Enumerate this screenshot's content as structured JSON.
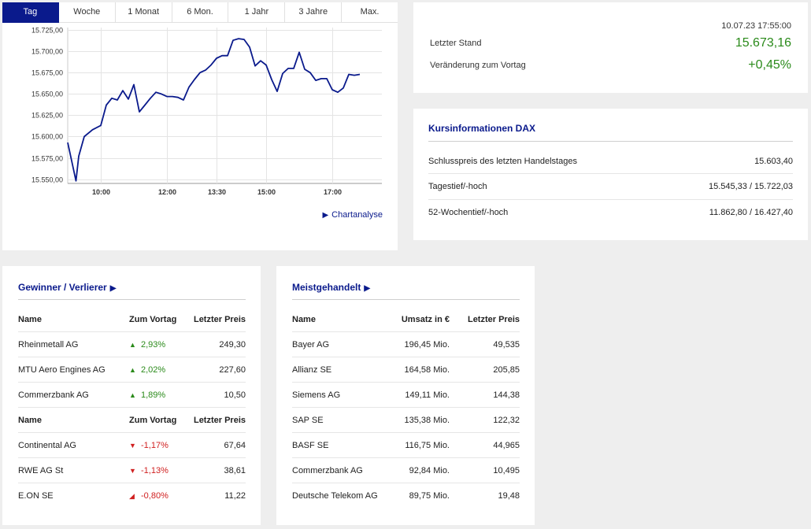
{
  "colors": {
    "accent": "#0a1a8c",
    "positive": "#2a8a1a",
    "negative": "#d02020"
  },
  "tabs": [
    {
      "label": "Tag",
      "active": true
    },
    {
      "label": "Woche"
    },
    {
      "label": "1 Monat"
    },
    {
      "label": "6 Mon."
    },
    {
      "label": "1 Jahr"
    },
    {
      "label": "3 Jahre"
    },
    {
      "label": "Max."
    }
  ],
  "chart_data": {
    "type": "line",
    "title": "",
    "xlabel": "",
    "ylabel": "",
    "y_ticks": [
      "15.725,00",
      "15.700,00",
      "15.675,00",
      "15.650,00",
      "15.625,00",
      "15.600,00",
      "15.575,00",
      "15.550,00"
    ],
    "y_tick_values": [
      15725,
      15700,
      15675,
      15650,
      15625,
      15600,
      15575,
      15550
    ],
    "x_ticks": [
      "10:00",
      "12:00",
      "13:30",
      "15:00",
      "17:00"
    ],
    "x_tick_values": [
      "10:00",
      "12:00",
      "13:30",
      "15:00",
      "17:00"
    ],
    "ylim": [
      15545,
      15728
    ],
    "xlim": [
      "09:00",
      "18:30"
    ],
    "grid": true,
    "series": [
      {
        "x": [
          "09:00",
          "09:15",
          "09:20",
          "09:30",
          "09:45",
          "10:00",
          "10:10",
          "10:20",
          "10:30",
          "10:40",
          "10:50",
          "11:00",
          "11:10",
          "11:20",
          "11:30",
          "11:40",
          "11:50",
          "12:00",
          "12:10",
          "12:20",
          "12:30",
          "12:40",
          "12:50",
          "13:00",
          "13:10",
          "13:20",
          "13:30",
          "13:40",
          "13:50",
          "14:00",
          "14:10",
          "14:20",
          "14:30",
          "14:40",
          "14:50",
          "15:00",
          "15:10",
          "15:20",
          "15:30",
          "15:40",
          "15:50",
          "16:00",
          "16:10",
          "16:20",
          "16:30",
          "16:40",
          "16:50",
          "17:00",
          "17:10",
          "17:20",
          "17:30",
          "17:40",
          "17:50"
        ],
        "y": [
          15593,
          15548,
          15577,
          15600,
          15608,
          15613,
          15637,
          15645,
          15643,
          15654,
          15644,
          15661,
          15629,
          15637,
          15645,
          15652,
          15650,
          15647,
          15647,
          15646,
          15643,
          15658,
          15667,
          15675,
          15678,
          15684,
          15692,
          15695,
          15695,
          15713,
          15715,
          15714,
          15705,
          15683,
          15689,
          15684,
          15667,
          15653,
          15674,
          15680,
          15680,
          15699,
          15679,
          15675,
          15666,
          15668,
          15668,
          15655,
          15652,
          15657,
          15673,
          15672,
          15673
        ]
      }
    ]
  },
  "chart_link": {
    "label": "Chartanalyse"
  },
  "quote": {
    "timestamp": "10.07.23 17:55:00",
    "last_label": "Letzter Stand",
    "last_value": "15.673,16",
    "change_label": "Veränderung zum Vortag",
    "change_value": "+0,45%"
  },
  "info": {
    "title": "Kursinformationen DAX",
    "rows": [
      {
        "label": "Schlusspreis des letzten Handelstages",
        "value": "15.603,40"
      },
      {
        "label": "Tagestief/-hoch",
        "value": "15.545,33 / 15.722,03"
      },
      {
        "label": "52-Wochentief/-hoch",
        "value": "11.862,80 / 16.427,40"
      }
    ]
  },
  "gainers_losers": {
    "title": "Gewinner / Verlierer",
    "headers": [
      "Name",
      "Zum Vortag",
      "Letzter Preis"
    ],
    "gainers": [
      {
        "name": "Rheinmetall AG",
        "change": "2,93%",
        "price": "249,30"
      },
      {
        "name": "MTU Aero Engines AG",
        "change": "2,02%",
        "price": "227,60"
      },
      {
        "name": "Commerzbank AG",
        "change": "1,89%",
        "price": "10,50"
      }
    ],
    "losers": [
      {
        "name": "Continental AG",
        "change": "-1,17%",
        "price": "67,64"
      },
      {
        "name": "RWE AG St",
        "change": "-1,13%",
        "price": "38,61"
      },
      {
        "name": "E.ON SE",
        "change": "-0,80%",
        "price": "11,22"
      }
    ]
  },
  "most_traded": {
    "title": "Meistgehandelt",
    "headers": [
      "Name",
      "Umsatz in €",
      "Letzter Preis"
    ],
    "rows": [
      {
        "name": "Bayer AG",
        "volume": "196,45 Mio.",
        "price": "49,535"
      },
      {
        "name": "Allianz SE",
        "volume": "164,58 Mio.",
        "price": "205,85"
      },
      {
        "name": "Siemens AG",
        "volume": "149,11 Mio.",
        "price": "144,38"
      },
      {
        "name": "SAP SE",
        "volume": "135,38 Mio.",
        "price": "122,32"
      },
      {
        "name": "BASF SE",
        "volume": "116,75 Mio.",
        "price": "44,965"
      },
      {
        "name": "Commerzbank AG",
        "volume": "92,84 Mio.",
        "price": "10,495"
      },
      {
        "name": "Deutsche Telekom AG",
        "volume": "89,75 Mio.",
        "price": "19,48"
      }
    ]
  }
}
